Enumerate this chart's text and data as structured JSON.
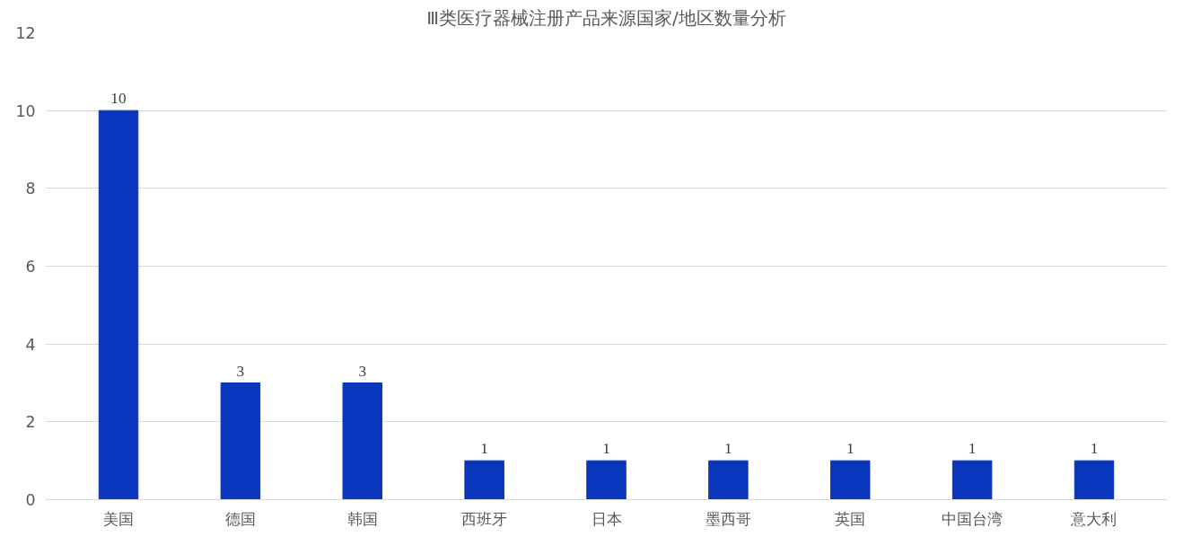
{
  "chart_data": {
    "type": "bar",
    "title": "Ⅲ类医疗器械注册产品来源国家/地区数量分析",
    "categories": [
      "美国",
      "德国",
      "韩国",
      "西班牙",
      "日本",
      "墨西哥",
      "英国",
      "中国台湾",
      "意大利"
    ],
    "values": [
      10,
      3,
      3,
      1,
      1,
      1,
      1,
      1,
      1
    ],
    "color": "#0a36be",
    "ylim": [
      0,
      12
    ],
    "yticks": [
      0,
      2,
      4,
      6,
      8,
      10,
      12
    ],
    "grid": "y",
    "data_labels": true
  }
}
